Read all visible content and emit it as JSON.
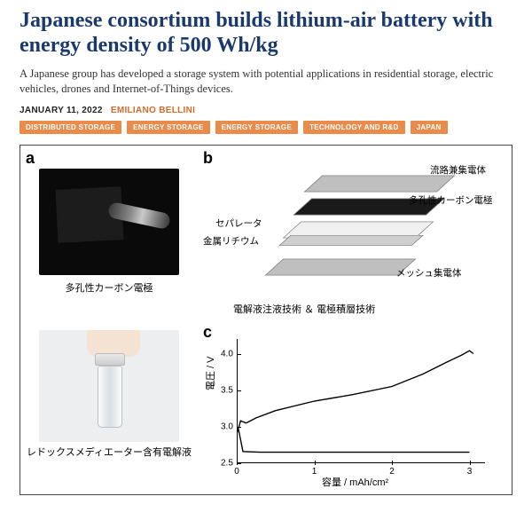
{
  "article": {
    "headline": "Japanese consortium builds lithium-air battery with energy density of 500 Wh/kg",
    "subhead": "A Japanese group has developed a storage system with potential applications in residential storage, electric vehicles, drones and Internet-of-Things devices.",
    "date": "JANUARY 11, 2022",
    "author": "EMILIANO BELLINI",
    "tags": [
      "DISTRIBUTED STORAGE",
      "ENERGY STORAGE",
      "ENERGY STORAGE",
      "TECHNOLOGY AND R&D",
      "JAPAN"
    ],
    "colors": {
      "headline": "#1a3a6e",
      "author": "#d46a2a",
      "tag_bg": "#e98b4a",
      "tag_fg": "#ffffff"
    }
  },
  "figure": {
    "panel_a": {
      "label": "a",
      "caption": "多孔性カーボン電極",
      "photo_bg": "#0a0a0a",
      "electrode_color": "#1c1c1c"
    },
    "panel_a2": {
      "caption": "レドックスメディエーター含有電解液",
      "photo_bg": "#eceef0"
    },
    "panel_b": {
      "label": "b",
      "layers": [
        {
          "name": "流路兼集電体",
          "color": "#bfbfbf"
        },
        {
          "name": "多孔性カーボン電極",
          "color": "#1a1a1a"
        },
        {
          "name": "セパレータ",
          "color": "#f0f0f0"
        },
        {
          "name": "金属リチウム",
          "color": "#cfcfcf"
        },
        {
          "name": "メッシュ集電体",
          "color": "#bfbfbf"
        }
      ],
      "bottom_caption": "電解液注液技術 ＆ 電極積層技術"
    },
    "panel_c": {
      "label": "c",
      "type": "line",
      "xlabel": "容量 / mAh/cm²",
      "ylabel": "電圧 / V",
      "xlim": [
        0,
        3.2
      ],
      "ylim": [
        2.5,
        4.2
      ],
      "xticks": [
        0,
        1,
        2,
        3
      ],
      "yticks": [
        2.5,
        3.0,
        3.5,
        4.0
      ],
      "line_color": "#000000",
      "line_width": 1.4,
      "background_color": "#ffffff",
      "series": {
        "charge": [
          [
            0,
            2.9
          ],
          [
            0.05,
            3.08
          ],
          [
            0.12,
            3.05
          ],
          [
            0.25,
            3.12
          ],
          [
            0.5,
            3.22
          ],
          [
            1.0,
            3.35
          ],
          [
            1.5,
            3.44
          ],
          [
            2.0,
            3.55
          ],
          [
            2.4,
            3.72
          ],
          [
            2.7,
            3.88
          ],
          [
            2.9,
            3.98
          ],
          [
            3.0,
            4.04
          ],
          [
            3.05,
            4.0
          ]
        ],
        "discharge": [
          [
            0.02,
            2.98
          ],
          [
            0.08,
            2.66
          ],
          [
            0.3,
            2.65
          ],
          [
            1.0,
            2.65
          ],
          [
            2.0,
            2.65
          ],
          [
            2.8,
            2.65
          ],
          [
            3.0,
            2.65
          ]
        ]
      }
    }
  }
}
